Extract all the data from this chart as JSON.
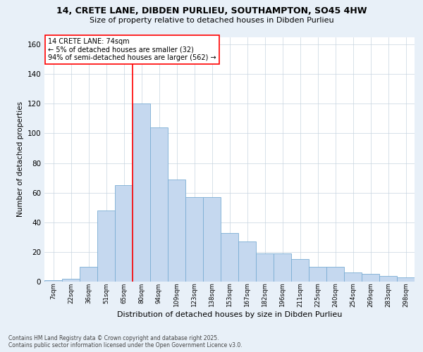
{
  "title_line1": "14, CRETE LANE, DIBDEN PURLIEU, SOUTHAMPTON, SO45 4HW",
  "title_line2": "Size of property relative to detached houses in Dibden Purlieu",
  "xlabel": "Distribution of detached houses by size in Dibden Purlieu",
  "ylabel": "Number of detached properties",
  "bar_labels": [
    "7sqm",
    "22sqm",
    "36sqm",
    "51sqm",
    "65sqm",
    "80sqm",
    "94sqm",
    "109sqm",
    "123sqm",
    "138sqm",
    "153sqm",
    "167sqm",
    "182sqm",
    "196sqm",
    "211sqm",
    "225sqm",
    "240sqm",
    "254sqm",
    "269sqm",
    "283sqm",
    "298sqm"
  ],
  "bar_heights": [
    1,
    2,
    10,
    48,
    65,
    120,
    104,
    69,
    57,
    57,
    33,
    27,
    19,
    19,
    15,
    10,
    10,
    6,
    5,
    4,
    3
  ],
  "bar_color": "#c5d8ef",
  "bar_edge_color": "#7badd4",
  "annotation_title": "14 CRETE LANE: 74sqm",
  "annotation_line2": "← 5% of detached houses are smaller (32)",
  "annotation_line3": "94% of semi-detached houses are larger (562) →",
  "vline_color": "red",
  "annotation_box_color": "white",
  "annotation_box_edge_color": "red",
  "background_color": "#e8f0f8",
  "plot_background": "white",
  "grid_color": "#c8d4e0",
  "ylim": [
    0,
    165
  ],
  "yticks": [
    0,
    20,
    40,
    60,
    80,
    100,
    120,
    140,
    160
  ],
  "footer_line1": "Contains HM Land Registry data © Crown copyright and database right 2025.",
  "footer_line2": "Contains public sector information licensed under the Open Government Licence v3.0."
}
